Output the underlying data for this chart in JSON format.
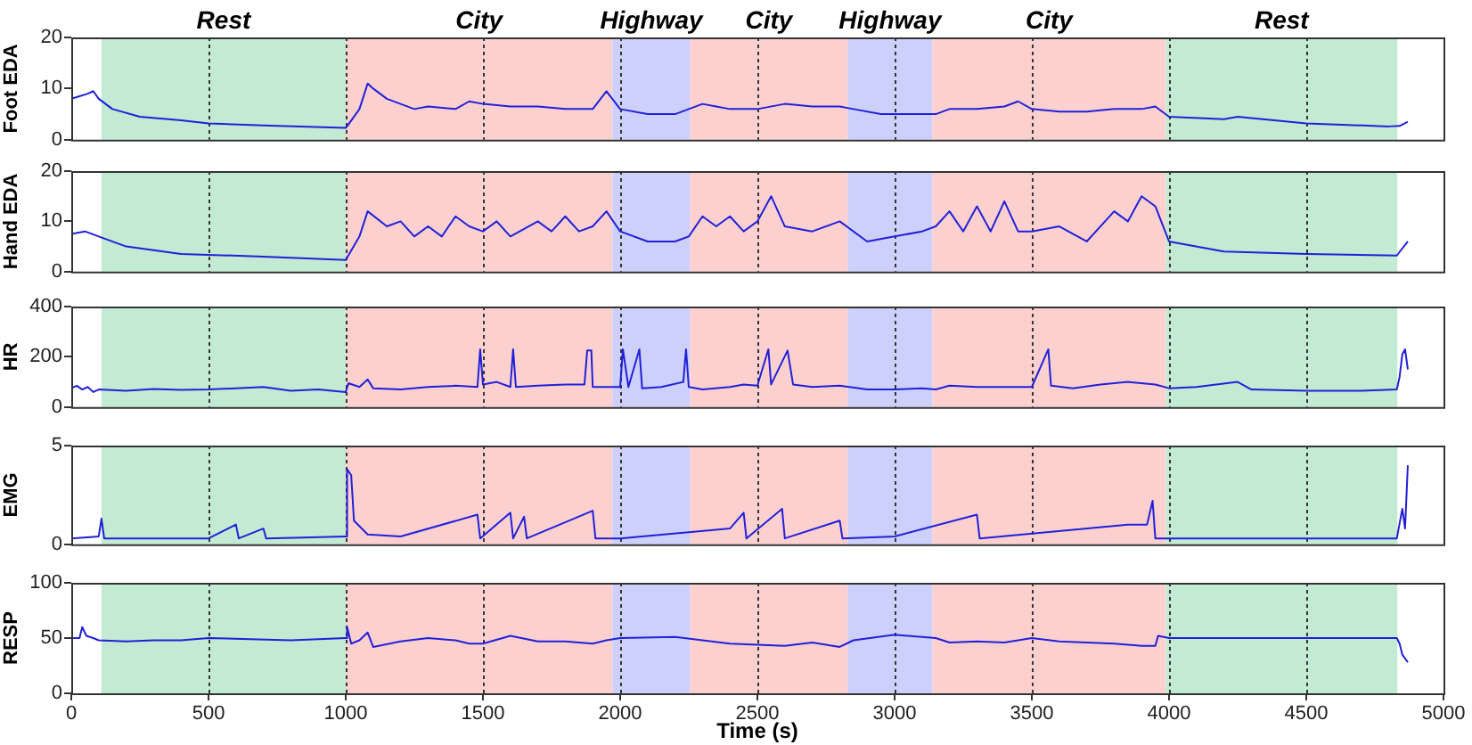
{
  "chart_data": [
    {
      "type": "line",
      "ylabel": "Foot EDA",
      "xlim": [
        0,
        5000
      ],
      "xticks": [
        0,
        500,
        1000,
        1500,
        2000,
        2500,
        3000,
        3500,
        4000,
        4500,
        5000
      ],
      "ylim": [
        0,
        20
      ],
      "yticks": [
        0,
        10,
        20
      ],
      "grid": "x",
      "tick_labels": "y",
      "bands": [
        {
          "axis": "x",
          "from": 110,
          "to": 1000,
          "label": "Rest",
          "color": "#c3ead2"
        },
        {
          "axis": "x",
          "from": 1000,
          "to": 1972,
          "label": "City",
          "color": "#fdd0d0"
        },
        {
          "axis": "x",
          "from": 1972,
          "to": 2255,
          "label": "Highway",
          "color": "#cdd0fb"
        },
        {
          "axis": "x",
          "from": 2255,
          "to": 2829,
          "label": "City",
          "color": "#fdd0d0"
        },
        {
          "axis": "x",
          "from": 2829,
          "to": 3138,
          "label": "Highway",
          "color": "#cdd0fb"
        },
        {
          "axis": "x",
          "from": 3138,
          "to": 3988,
          "label": "City",
          "color": "#fdd0d0"
        },
        {
          "axis": "x",
          "from": 3988,
          "to": 4832,
          "label": "Rest",
          "color": "#c3ead2"
        }
      ],
      "series": [
        {
          "color": "#2020d8",
          "x": [
            0,
            30,
            60,
            80,
            100,
            150,
            250,
            400,
            500,
            700,
            1000,
            1010,
            1050,
            1080,
            1100,
            1150,
            1200,
            1250,
            1300,
            1400,
            1450,
            1500,
            1600,
            1700,
            1800,
            1900,
            1950,
            2000,
            2100,
            2200,
            2300,
            2350,
            2400,
            2500,
            2600,
            2700,
            2800,
            2850,
            2950,
            3050,
            3150,
            3200,
            3300,
            3400,
            3450,
            3500,
            3600,
            3700,
            3800,
            3900,
            3950,
            4000,
            4200,
            4250,
            4500,
            4800,
            4840,
            4870
          ],
          "values": [
            8,
            8.5,
            9,
            9.5,
            8,
            6,
            4.5,
            3.8,
            3.2,
            2.8,
            2.3,
            3,
            6,
            11,
            10,
            8,
            7,
            6,
            6.5,
            6,
            7.5,
            7,
            6.5,
            6.5,
            6,
            6,
            9.5,
            6,
            5,
            5,
            7,
            6.5,
            6,
            6,
            7,
            6.5,
            6.5,
            6,
            5,
            5,
            5,
            6,
            6,
            6.5,
            7.5,
            6,
            5.5,
            5.5,
            6,
            6,
            6.5,
            4.5,
            4,
            4.5,
            3.2,
            2.6,
            2.7,
            3.5
          ]
        }
      ]
    },
    {
      "type": "line",
      "ylabel": "Hand EDA",
      "xlim": [
        0,
        5000
      ],
      "xticks": [
        0,
        500,
        1000,
        1500,
        2000,
        2500,
        3000,
        3500,
        4000,
        4500,
        5000
      ],
      "ylim": [
        0,
        20
      ],
      "yticks": [
        0,
        10,
        20
      ],
      "grid": "x",
      "tick_labels": "y",
      "bands": [
        {
          "axis": "x",
          "from": 110,
          "to": 1000,
          "color": "#c3ead2"
        },
        {
          "axis": "x",
          "from": 1000,
          "to": 1972,
          "color": "#fdd0d0"
        },
        {
          "axis": "x",
          "from": 1972,
          "to": 2255,
          "color": "#cdd0fb"
        },
        {
          "axis": "x",
          "from": 2255,
          "to": 2829,
          "color": "#fdd0d0"
        },
        {
          "axis": "x",
          "from": 2829,
          "to": 3138,
          "color": "#cdd0fb"
        },
        {
          "axis": "x",
          "from": 3138,
          "to": 3988,
          "color": "#fdd0d0"
        },
        {
          "axis": "x",
          "from": 3988,
          "to": 4832,
          "color": "#c3ead2"
        }
      ],
      "series": [
        {
          "color": "#2020d8",
          "x": [
            0,
            50,
            100,
            200,
            400,
            700,
            1000,
            1050,
            1080,
            1150,
            1200,
            1250,
            1300,
            1350,
            1400,
            1450,
            1500,
            1550,
            1600,
            1700,
            1750,
            1800,
            1850,
            1900,
            1950,
            2000,
            2100,
            2200,
            2250,
            2300,
            2350,
            2400,
            2450,
            2500,
            2550,
            2600,
            2700,
            2800,
            2900,
            3000,
            3100,
            3150,
            3200,
            3250,
            3300,
            3350,
            3400,
            3450,
            3500,
            3600,
            3700,
            3800,
            3850,
            3900,
            3950,
            4000,
            4200,
            4500,
            4830,
            4870
          ],
          "values": [
            7.5,
            8,
            7,
            5,
            3.5,
            3,
            2.3,
            7,
            12,
            9,
            10,
            7,
            9,
            7,
            11,
            9,
            8,
            10,
            7,
            10,
            8,
            11,
            8,
            9,
            12,
            8,
            6,
            6,
            7,
            11,
            9,
            11,
            8,
            10,
            15,
            9,
            8,
            10,
            6,
            7,
            8,
            9,
            12,
            8,
            13,
            8,
            14,
            8,
            8,
            9,
            6,
            12,
            10,
            15,
            13,
            6,
            4,
            3.5,
            3.2,
            6
          ]
        }
      ]
    },
    {
      "type": "line",
      "ylabel": "HR",
      "xlim": [
        0,
        5000
      ],
      "xticks": [
        0,
        500,
        1000,
        1500,
        2000,
        2500,
        3000,
        3500,
        4000,
        4500,
        5000
      ],
      "ylim": [
        0,
        400
      ],
      "yticks": [
        0,
        200,
        400
      ],
      "grid": "x",
      "tick_labels": "y",
      "bands": [
        {
          "axis": "x",
          "from": 110,
          "to": 1000,
          "color": "#c3ead2"
        },
        {
          "axis": "x",
          "from": 1000,
          "to": 1972,
          "color": "#fdd0d0"
        },
        {
          "axis": "x",
          "from": 1972,
          "to": 2255,
          "color": "#cdd0fb"
        },
        {
          "axis": "x",
          "from": 2255,
          "to": 2829,
          "color": "#fdd0d0"
        },
        {
          "axis": "x",
          "from": 2829,
          "to": 3138,
          "color": "#cdd0fb"
        },
        {
          "axis": "x",
          "from": 3138,
          "to": 3988,
          "color": "#fdd0d0"
        },
        {
          "axis": "x",
          "from": 3988,
          "to": 4832,
          "color": "#c3ead2"
        }
      ],
      "series": [
        {
          "color": "#2020d8",
          "x": [
            0,
            20,
            40,
            60,
            80,
            100,
            200,
            300,
            400,
            500,
            600,
            700,
            800,
            900,
            1000,
            1010,
            1050,
            1080,
            1100,
            1200,
            1300,
            1400,
            1480,
            1490,
            1500,
            1550,
            1600,
            1610,
            1620,
            1700,
            1800,
            1870,
            1880,
            1895,
            1900,
            1950,
            2000,
            2010,
            2030,
            2070,
            2080,
            2150,
            2230,
            2240,
            2250,
            2300,
            2400,
            2450,
            2500,
            2540,
            2550,
            2610,
            2630,
            2700,
            2800,
            2900,
            3000,
            3100,
            3150,
            3200,
            3300,
            3400,
            3500,
            3560,
            3570,
            3650,
            3750,
            3850,
            3950,
            4000,
            4100,
            4250,
            4300,
            4500,
            4700,
            4830,
            4840,
            4850,
            4860,
            4870
          ],
          "values": [
            75,
            85,
            70,
            80,
            60,
            70,
            65,
            72,
            68,
            70,
            75,
            80,
            65,
            70,
            60,
            95,
            80,
            110,
            75,
            70,
            80,
            85,
            80,
            230,
            90,
            100,
            80,
            230,
            80,
            85,
            90,
            90,
            225,
            225,
            80,
            80,
            80,
            230,
            80,
            230,
            75,
            80,
            100,
            230,
            80,
            70,
            80,
            90,
            85,
            230,
            90,
            225,
            90,
            80,
            85,
            70,
            70,
            75,
            70,
            85,
            80,
            80,
            80,
            230,
            85,
            75,
            90,
            100,
            90,
            75,
            80,
            100,
            70,
            65,
            65,
            70,
            120,
            210,
            230,
            150
          ]
        }
      ]
    },
    {
      "type": "line",
      "ylabel": "EMG",
      "xlim": [
        0,
        5000
      ],
      "xticks": [
        0,
        500,
        1000,
        1500,
        2000,
        2500,
        3000,
        3500,
        4000,
        4500,
        5000
      ],
      "ylim": [
        0,
        5
      ],
      "yticks": [
        0,
        5
      ],
      "grid": "x",
      "tick_labels": "y",
      "bands": [
        {
          "axis": "x",
          "from": 110,
          "to": 1000,
          "color": "#c3ead2"
        },
        {
          "axis": "x",
          "from": 1000,
          "to": 1972,
          "color": "#fdd0d0"
        },
        {
          "axis": "x",
          "from": 1972,
          "to": 2255,
          "color": "#cdd0fb"
        },
        {
          "axis": "x",
          "from": 2255,
          "to": 2829,
          "color": "#fdd0d0"
        },
        {
          "axis": "x",
          "from": 2829,
          "to": 3138,
          "color": "#cdd0fb"
        },
        {
          "axis": "x",
          "from": 3138,
          "to": 3988,
          "color": "#fdd0d0"
        },
        {
          "axis": "x",
          "from": 3988,
          "to": 4832,
          "color": "#c3ead2"
        }
      ],
      "series": [
        {
          "color": "#2020d8",
          "x": [
            0,
            100,
            110,
            120,
            500,
            600,
            610,
            700,
            710,
            1000,
            1005,
            1020,
            1030,
            1080,
            1200,
            1480,
            1490,
            1600,
            1610,
            1650,
            1660,
            1900,
            1910,
            2000,
            2400,
            2450,
            2460,
            2590,
            2600,
            2800,
            2810,
            3000,
            3300,
            3310,
            3850,
            3920,
            3940,
            3950,
            4000,
            4500,
            4830,
            4850,
            4860,
            4870
          ],
          "values": [
            0.3,
            0.4,
            1.3,
            0.3,
            0.3,
            1,
            0.3,
            0.8,
            0.3,
            0.4,
            3.8,
            3.5,
            1.2,
            0.5,
            0.4,
            1.5,
            0.3,
            1.6,
            0.3,
            1.4,
            0.3,
            1.7,
            0.3,
            0.3,
            0.8,
            1.6,
            0.3,
            1.8,
            0.3,
            1.2,
            0.3,
            0.4,
            1.5,
            0.3,
            1,
            1,
            2.2,
            0.3,
            0.3,
            0.3,
            0.3,
            1.8,
            0.8,
            4
          ]
        }
      ]
    },
    {
      "type": "line",
      "ylabel": "RESP",
      "xlabel": "Time (s)",
      "xlim": [
        0,
        5000
      ],
      "xticks": [
        0,
        500,
        1000,
        1500,
        2000,
        2500,
        3000,
        3500,
        4000,
        4500,
        5000
      ],
      "ylim": [
        0,
        100
      ],
      "yticks": [
        0,
        50,
        100
      ],
      "grid": "x",
      "bands": [
        {
          "axis": "x",
          "from": 110,
          "to": 1000,
          "color": "#c3ead2"
        },
        {
          "axis": "x",
          "from": 1000,
          "to": 1972,
          "color": "#fdd0d0"
        },
        {
          "axis": "x",
          "from": 1972,
          "to": 2255,
          "color": "#cdd0fb"
        },
        {
          "axis": "x",
          "from": 2255,
          "to": 2829,
          "color": "#fdd0d0"
        },
        {
          "axis": "x",
          "from": 2829,
          "to": 3138,
          "color": "#cdd0fb"
        },
        {
          "axis": "x",
          "from": 3138,
          "to": 3988,
          "color": "#fdd0d0"
        },
        {
          "axis": "x",
          "from": 3988,
          "to": 4832,
          "color": "#c3ead2"
        }
      ],
      "series": [
        {
          "color": "#2020d8",
          "x": [
            0,
            30,
            40,
            55,
            80,
            100,
            200,
            300,
            400,
            500,
            800,
            1000,
            1005,
            1020,
            1050,
            1080,
            1100,
            1200,
            1300,
            1400,
            1450,
            1500,
            1600,
            1700,
            1800,
            1900,
            1950,
            2000,
            2200,
            2300,
            2400,
            2500,
            2600,
            2700,
            2800,
            2850,
            3000,
            3150,
            3200,
            3300,
            3400,
            3500,
            3600,
            3700,
            3800,
            3900,
            3950,
            3960,
            4000,
            4500,
            4830,
            4840,
            4850,
            4870
          ],
          "values": [
            50,
            50,
            60,
            52,
            50,
            48,
            47,
            48,
            48,
            50,
            48,
            50,
            60,
            45,
            48,
            55,
            42,
            47,
            50,
            48,
            45,
            45,
            52,
            47,
            47,
            45,
            48,
            50,
            51,
            48,
            45,
            44,
            43,
            46,
            42,
            48,
            53,
            50,
            46,
            47,
            46,
            50,
            47,
            46,
            45,
            43,
            43,
            52,
            50,
            50,
            50,
            45,
            35,
            28
          ]
        }
      ]
    }
  ]
}
